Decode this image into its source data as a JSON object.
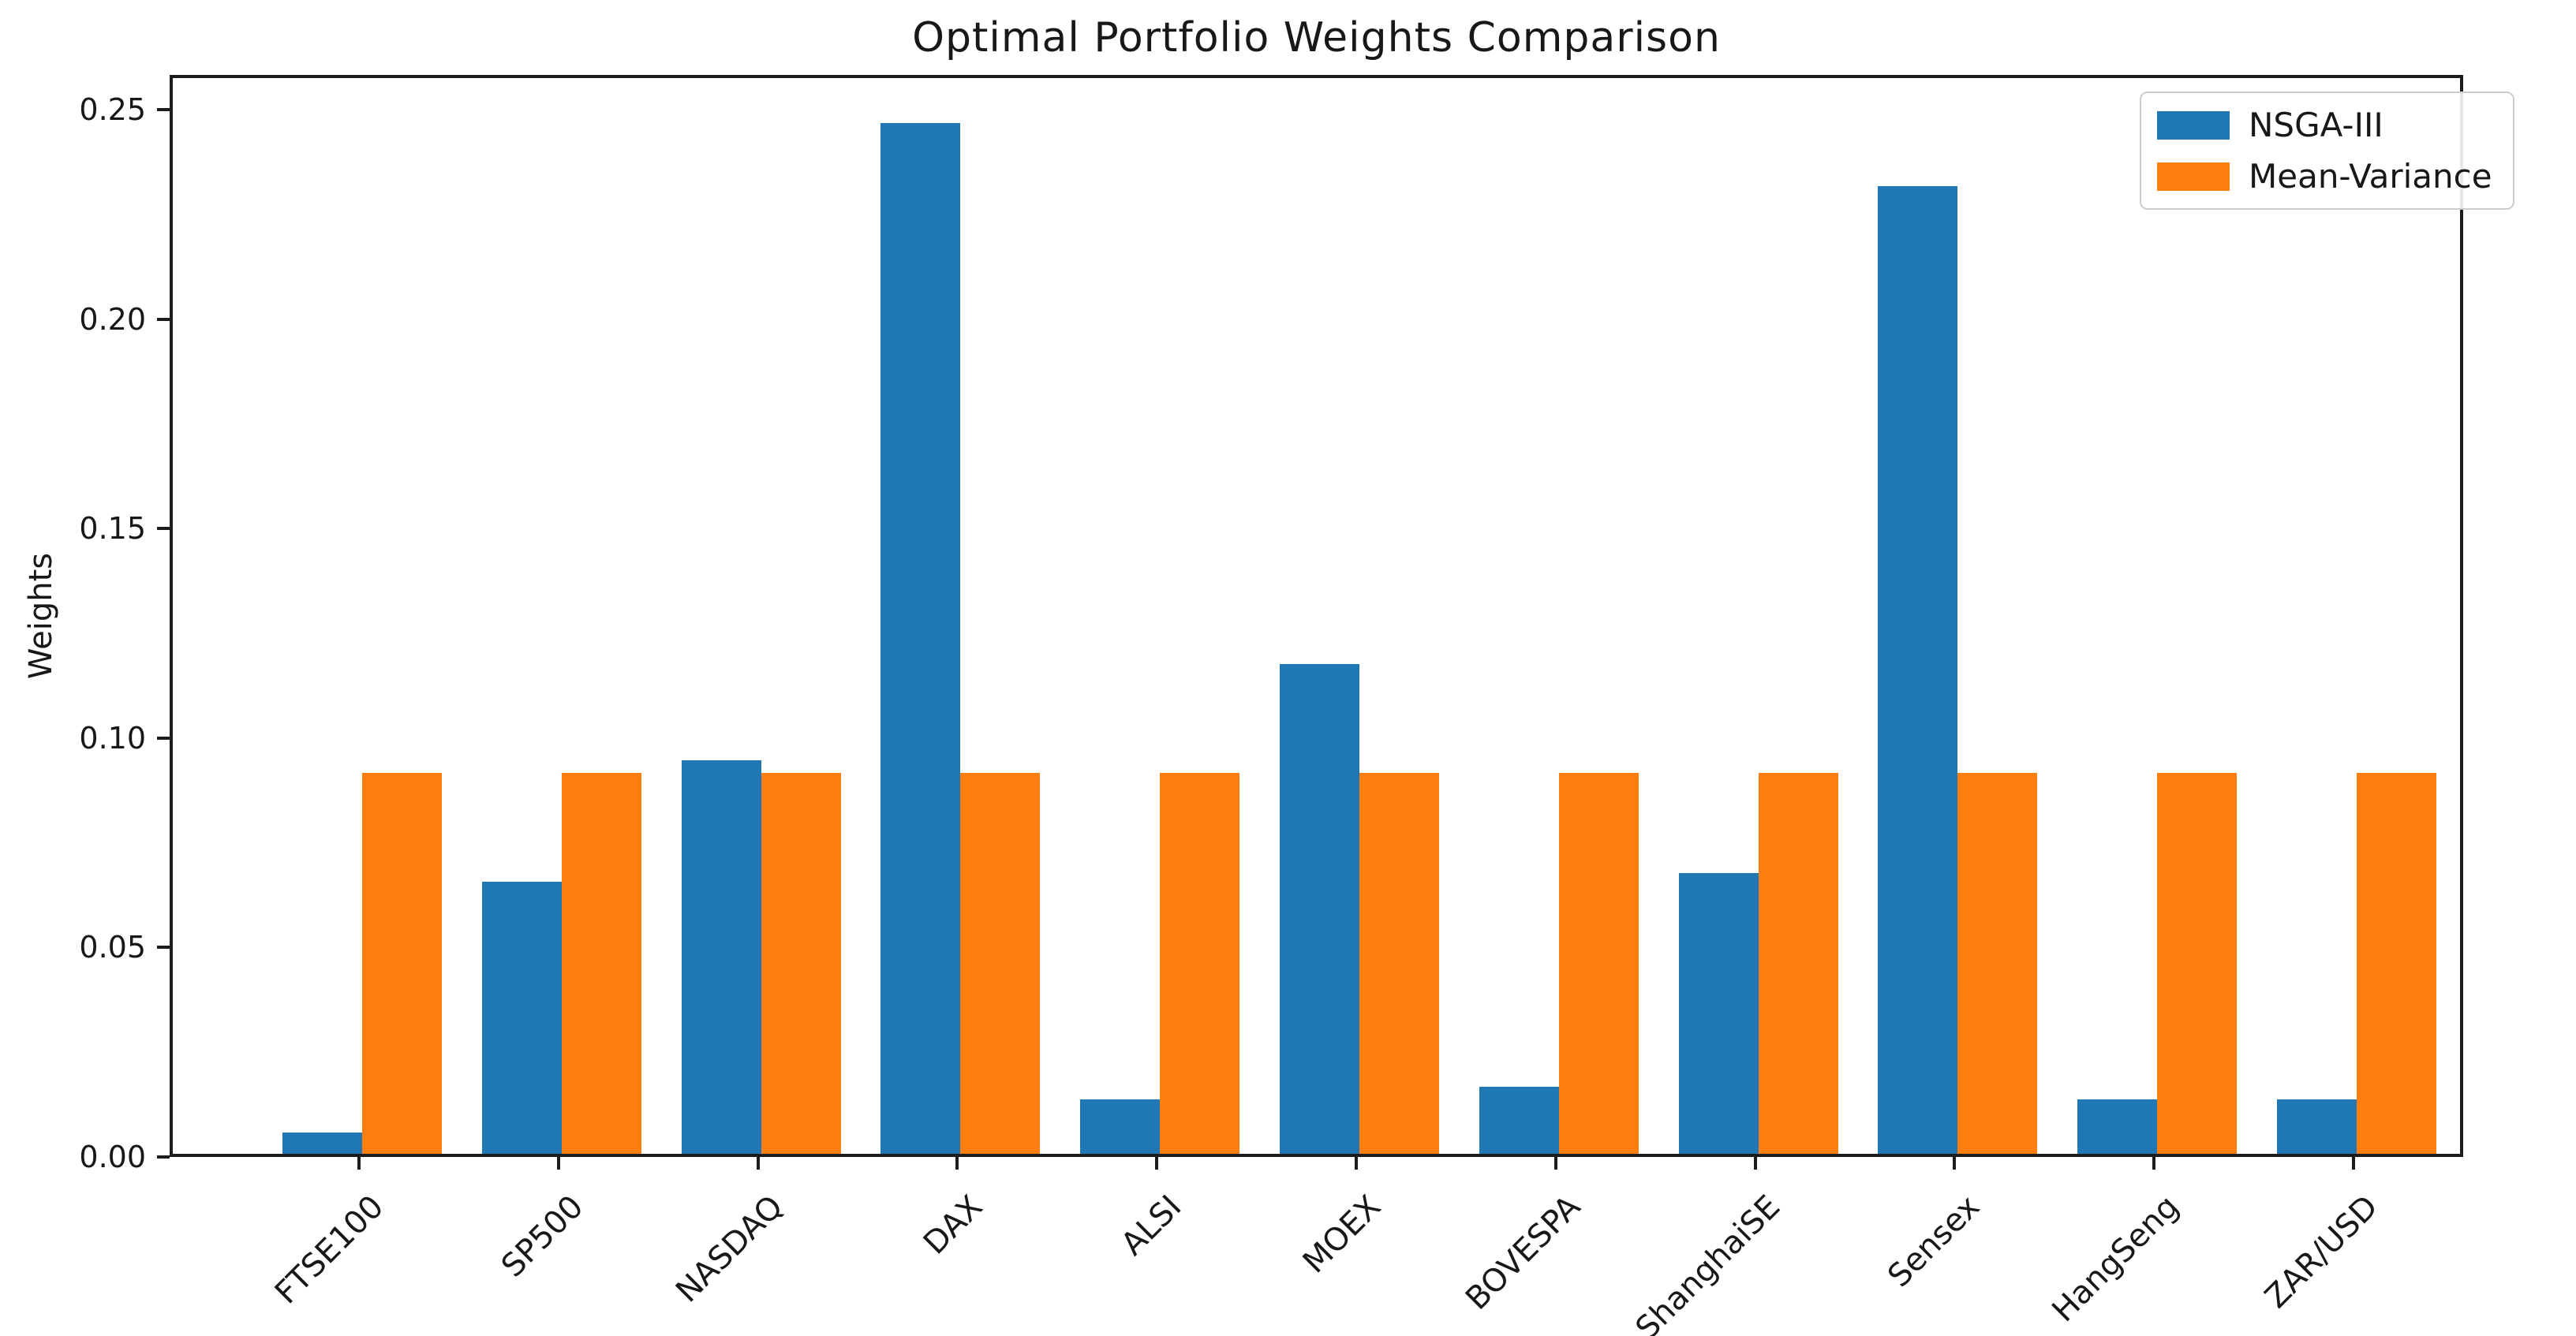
{
  "chart_data": {
    "type": "bar",
    "title": "Optimal Portfolio Weights Comparison",
    "xlabel": "",
    "ylabel": "Weights",
    "categories": [
      "FTSE100",
      "SP500",
      "NASDAQ",
      "DAX",
      "ALSI",
      "MOEX",
      "BOVESPA",
      "ShanghaiSE",
      "Sensex",
      "HangSeng",
      "ZAR/USD"
    ],
    "series": [
      {
        "name": "NSGA-III",
        "color": "#1f77b4",
        "values": [
          0.005,
          0.065,
          0.094,
          0.246,
          0.013,
          0.117,
          0.016,
          0.067,
          0.231,
          0.013,
          0.013
        ]
      },
      {
        "name": "Mean-Variance",
        "color": "#ff7f0e",
        "values": [
          0.0909,
          0.0909,
          0.0909,
          0.0909,
          0.0909,
          0.0909,
          0.0909,
          0.0909,
          0.0909,
          0.0909,
          0.0909
        ]
      }
    ],
    "ylim": [
      0,
      0.2583
    ],
    "yticks": [
      0.0,
      0.05,
      0.1,
      0.15,
      0.2,
      0.25
    ],
    "ytick_label_format": "2dp",
    "xtick_rotation_deg": 45,
    "grid": false,
    "legend_position": "upper-right"
  }
}
